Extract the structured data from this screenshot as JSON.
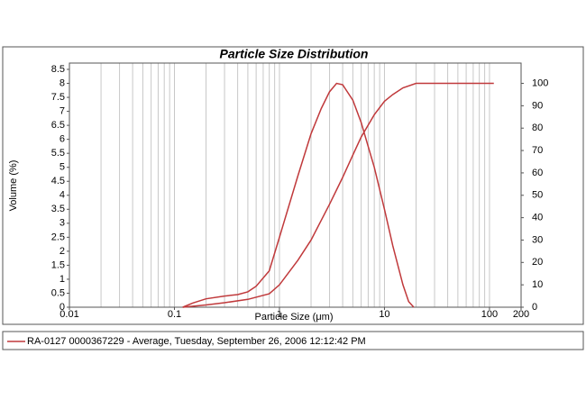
{
  "chart_data": {
    "type": "line",
    "title": "Particle Size Distribution",
    "xlabel": "Particle Size (μm)",
    "ylabel": "Volume (%)",
    "xscale": "log",
    "xlim": [
      0.01,
      200
    ],
    "xticks": [
      0.01,
      0.1,
      1,
      10,
      100,
      200
    ],
    "xgrid": [
      0.02,
      0.03,
      0.04,
      0.05,
      0.06,
      0.07,
      0.08,
      0.09,
      0.1,
      0.2,
      0.3,
      0.4,
      0.5,
      0.6,
      0.7,
      0.8,
      0.9,
      1,
      2,
      3,
      4,
      5,
      6,
      7,
      8,
      9,
      10,
      20,
      30,
      40,
      50,
      60,
      70,
      80,
      90,
      100
    ],
    "ylim": [
      0,
      8.5
    ],
    "yticks": [
      0,
      0.5,
      1,
      1.5,
      2,
      2.5,
      3,
      3.5,
      4,
      4.5,
      5,
      5.5,
      6,
      6.5,
      7,
      7.5,
      8,
      8.5
    ],
    "y2lim": [
      0,
      106.25
    ],
    "y2ticks": [
      0,
      10,
      20,
      30,
      40,
      50,
      60,
      70,
      80,
      90,
      100
    ],
    "series": [
      {
        "name": "RA-0127 0000367229 - Average, Tuesday, September 26, 2006 12:12:42 PM",
        "color": "#c0393b",
        "x": [
          0.12,
          0.15,
          0.2,
          0.3,
          0.4,
          0.5,
          0.6,
          0.8,
          1,
          1.5,
          2,
          2.5,
          3,
          3.5,
          4,
          5,
          6,
          8,
          10,
          12,
          15,
          17,
          19
        ],
        "values": [
          0,
          0.15,
          0.3,
          0.4,
          0.45,
          0.55,
          0.75,
          1.3,
          2.5,
          4.7,
          6.2,
          7.1,
          7.7,
          8.0,
          7.95,
          7.4,
          6.6,
          5.0,
          3.5,
          2.2,
          0.8,
          0.2,
          0
        ]
      },
      {
        "color": "#c0393b",
        "axis": "y2",
        "x": [
          0.12,
          0.2,
          0.3,
          0.5,
          0.8,
          1,
          1.5,
          2,
          3,
          4,
          5,
          6,
          8,
          10,
          12,
          15,
          20,
          110
        ],
        "values": [
          0,
          1,
          2,
          3.5,
          6,
          10,
          21,
          30,
          46,
          58,
          68,
          76,
          86,
          92,
          95,
          98,
          100,
          100
        ]
      }
    ]
  }
}
